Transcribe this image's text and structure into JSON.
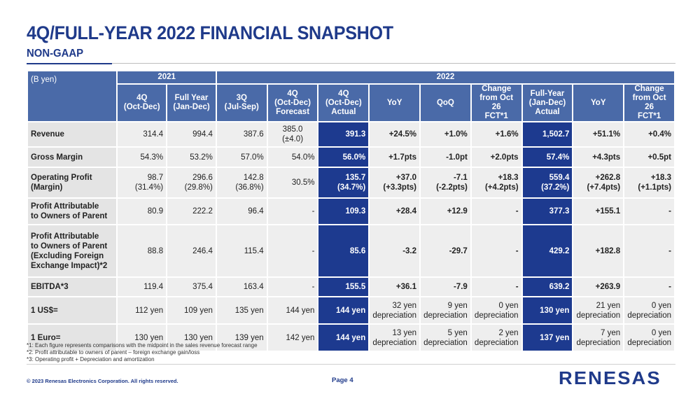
{
  "title": "4Q/FULL-YEAR 2022 FINANCIAL SNAPSHOT",
  "subtitle": "NON-GAAP",
  "table": {
    "unit_label": "(B yen)",
    "year_groups": [
      "2021",
      "2022"
    ],
    "columns": [
      "4Q\n(Oct-Dec)",
      "Full Year\n(Jan-Dec)",
      "3Q\n(Jul-Sep)",
      "4Q\n(Oct-Dec)\nForecast",
      "4Q\n(Oct-Dec)\nActual",
      "YoY",
      "QoQ",
      "Change\nfrom Oct 26\nFCT*1",
      "Full-Year\n(Jan-Dec)\nActual",
      "YoY",
      "Change\nfrom Oct 26\nFCT*1"
    ],
    "rows": [
      {
        "label": "Revenue",
        "cells": [
          "314.4",
          "994.4",
          "387.6",
          "385.0\n(±4.0)",
          "391.3",
          "+24.5%",
          "+1.0%",
          "+1.6%",
          "1,502.7",
          "+51.1%",
          "+0.4%"
        ]
      },
      {
        "label": "Gross Margin",
        "cells": [
          "54.3%",
          "53.2%",
          "57.0%",
          "54.0%",
          "56.0%",
          "+1.7pts",
          "-1.0pt",
          "+2.0pts",
          "57.4%",
          "+4.3pts",
          "+0.5pt"
        ]
      },
      {
        "label": "Operating Profit\n(Margin)",
        "cells": [
          "98.7\n(31.4%)",
          "296.6\n(29.8%)",
          "142.8\n(36.8%)",
          "30.5%",
          "135.7\n(34.7%)",
          "+37.0\n(+3.3pts)",
          "-7.1\n(-2.2pts)",
          "+18.3\n(+4.2pts)",
          "559.4\n(37.2%)",
          "+262.8\n(+7.4pts)",
          "+18.3\n(+1.1pts)"
        ]
      },
      {
        "label": "Profit Attributable\nto Owners of Parent",
        "cells": [
          "80.9",
          "222.2",
          "96.4",
          "-",
          "109.3",
          "+28.4",
          "+12.9",
          "-",
          "377.3",
          "+155.1",
          "-"
        ]
      },
      {
        "label": "Profit Attributable\nto Owners of Parent\n(Excluding Foreign\nExchange Impact)*2",
        "cells": [
          "88.8",
          "246.4",
          "115.4",
          "-",
          "85.6",
          "-3.2",
          "-29.7",
          "-",
          "429.2",
          "+182.8",
          "-"
        ]
      },
      {
        "label": "EBITDA*3",
        "cells": [
          "119.4",
          "375.4",
          "163.4",
          "-",
          "155.5",
          "+36.1",
          "-7.9",
          "-",
          "639.2",
          "+263.9",
          "-"
        ]
      },
      {
        "label": "1 US$=",
        "cells": [
          "112 yen",
          "109 yen",
          "135 yen",
          "144 yen",
          "144 yen",
          "32 yen\ndepreciation",
          "9 yen\ndepreciation",
          "0 yen\ndepreciation",
          "130 yen",
          "21 yen\ndepreciation",
          "0 yen\ndepreciation"
        ]
      },
      {
        "label": "1 Euro=",
        "cells": [
          "130 yen",
          "130 yen",
          "139 yen",
          "142 yen",
          "144 yen",
          "13 yen\ndepreciation",
          "5 yen\ndepreciation",
          "2 yen\ndepreciation",
          "137 yen",
          "7 yen\ndepreciation",
          "0 yen\ndepreciation"
        ]
      }
    ]
  },
  "notes": [
    "*1: Each figure represents comparisons with the midpoint in the sales revenue forecast range",
    "*2: Profit attributable to owners of parent – foreign exchange gain/loss",
    "*3: Operating profit + Depreciation and amortization"
  ],
  "footer": {
    "copyright": "© 2023 Renesas Electronics Corporation. All rights reserved.",
    "page": "Page 4",
    "logo_text": "RENESAS"
  },
  "colors": {
    "brand": "#1f3a8a",
    "header_fill": "#4a6aa8",
    "highlight_fill": "#1d3a8f",
    "cell_fill": "#eeeeee"
  }
}
